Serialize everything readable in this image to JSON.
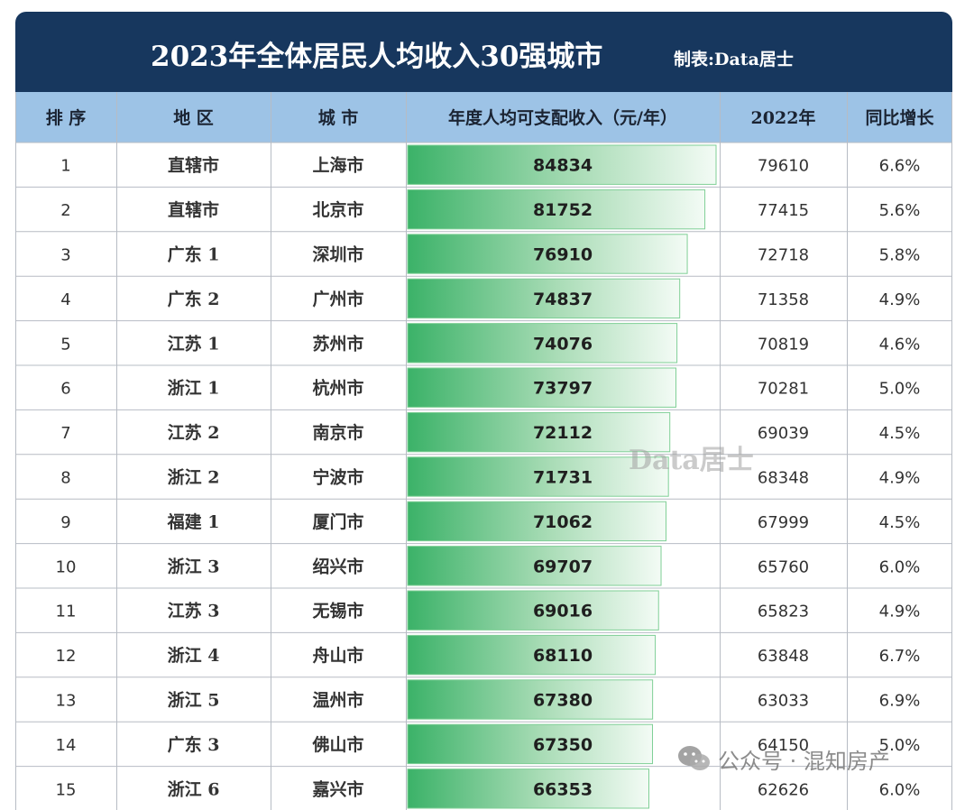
{
  "title": "2023年全体居民人均收入30强城市",
  "maker": "制表:Data居士",
  "watermark": "Data居士",
  "footer_mark": "公众号 · 混知房产",
  "colors": {
    "header_bg": "#17375e",
    "column_header_bg": "#9dc3e6",
    "bar_green": "#3fb56a",
    "grid": "#b7bcc4"
  },
  "columns": [
    "排 序",
    "地 区",
    "城 市",
    "年度人均可支配收入（元/年）",
    "2022年",
    "同比增长"
  ],
  "chart_data": {
    "type": "table",
    "bar_column": "年度人均可支配收入（元/年）",
    "rows": [
      {
        "rank": "1",
        "region": "直辖市",
        "city": "上海市",
        "income_2023": 84834,
        "income_2022": "79610",
        "growth": "6.6%"
      },
      {
        "rank": "2",
        "region": "直辖市",
        "city": "北京市",
        "income_2023": 81752,
        "income_2022": "77415",
        "growth": "5.6%"
      },
      {
        "rank": "3",
        "region": "广东 1",
        "city": "深圳市",
        "income_2023": 76910,
        "income_2022": "72718",
        "growth": "5.8%"
      },
      {
        "rank": "4",
        "region": "广东 2",
        "city": "广州市",
        "income_2023": 74837,
        "income_2022": "71358",
        "growth": "4.9%"
      },
      {
        "rank": "5",
        "region": "江苏 1",
        "city": "苏州市",
        "income_2023": 74076,
        "income_2022": "70819",
        "growth": "4.6%"
      },
      {
        "rank": "6",
        "region": "浙江 1",
        "city": "杭州市",
        "income_2023": 73797,
        "income_2022": "70281",
        "growth": "5.0%"
      },
      {
        "rank": "7",
        "region": "江苏 2",
        "city": "南京市",
        "income_2023": 72112,
        "income_2022": "69039",
        "growth": "4.5%"
      },
      {
        "rank": "8",
        "region": "浙江 2",
        "city": "宁波市",
        "income_2023": 71731,
        "income_2022": "68348",
        "growth": "4.9%"
      },
      {
        "rank": "9",
        "region": "福建 1",
        "city": "厦门市",
        "income_2023": 71062,
        "income_2022": "67999",
        "growth": "4.5%"
      },
      {
        "rank": "10",
        "region": "浙江 3",
        "city": "绍兴市",
        "income_2023": 69707,
        "income_2022": "65760",
        "growth": "6.0%"
      },
      {
        "rank": "11",
        "region": "江苏 3",
        "city": "无锡市",
        "income_2023": 69016,
        "income_2022": "65823",
        "growth": "4.9%"
      },
      {
        "rank": "12",
        "region": "浙江 4",
        "city": "舟山市",
        "income_2023": 68110,
        "income_2022": "63848",
        "growth": "6.7%"
      },
      {
        "rank": "13",
        "region": "浙江 5",
        "city": "温州市",
        "income_2023": 67380,
        "income_2022": "63033",
        "growth": "6.9%"
      },
      {
        "rank": "14",
        "region": "广东 3",
        "city": "佛山市",
        "income_2023": 67350,
        "income_2022": "64150",
        "growth": "5.0%"
      },
      {
        "rank": "15",
        "region": "浙江 6",
        "city": "嘉兴市",
        "income_2023": 66353,
        "income_2022": "62626",
        "growth": "6.0%"
      }
    ]
  }
}
